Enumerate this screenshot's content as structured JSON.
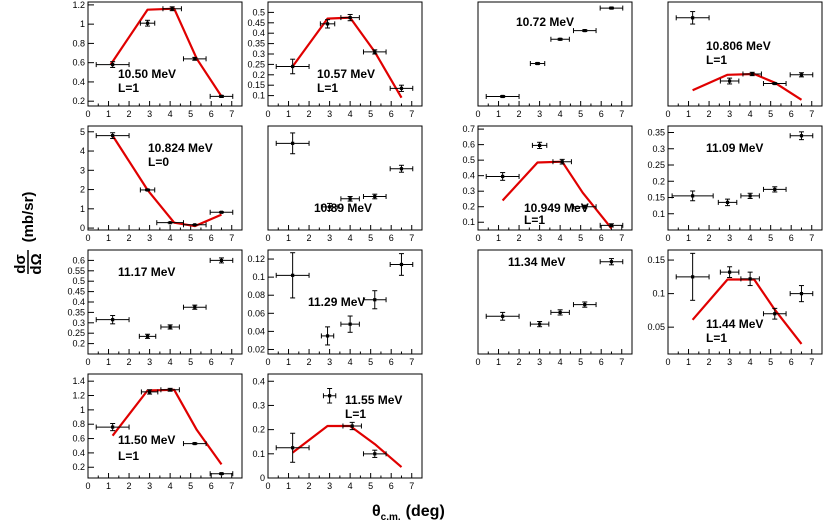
{
  "figure": {
    "xlabel_main": "θ",
    "xlabel_sub": "c.m.",
    "xlabel_unit": "(deg)",
    "ylabel_num": "dσ",
    "ylabel_den": "dΩ",
    "ylabel_unit": "(mb/sr)"
  },
  "chart_data": [
    {
      "type": "scatter",
      "energy": "10.50 MeV",
      "L": "L=1",
      "xlim": [
        0,
        7.5
      ],
      "ylim": [
        0.15,
        1.23
      ],
      "yticks": [
        0.2,
        0.4,
        0.6,
        0.8,
        1,
        1.2
      ],
      "points": [
        {
          "x": 1.2,
          "y": 0.58,
          "xerr": 0.8,
          "yerr": 0.03
        },
        {
          "x": 2.9,
          "y": 1.01,
          "xerr": 0.35,
          "yerr": 0.03
        },
        {
          "x": 4.1,
          "y": 1.16,
          "xerr": 0.45,
          "yerr": 0.02
        },
        {
          "x": 5.2,
          "y": 0.64,
          "xerr": 0.55,
          "yerr": 0.015
        },
        {
          "x": 6.5,
          "y": 0.25,
          "xerr": 0.55,
          "yerr": 0.01
        }
      ],
      "fit": [
        [
          1.1,
          0.58
        ],
        [
          2.9,
          1.15
        ],
        [
          4.2,
          1.16
        ],
        [
          5.3,
          0.64
        ],
        [
          6.5,
          0.25
        ]
      ]
    },
    {
      "type": "scatter",
      "energy": "10.57 MeV",
      "L": "L=1",
      "xlim": [
        0,
        7.5
      ],
      "ylim": [
        0.05,
        0.55
      ],
      "yticks": [
        0.1,
        0.15,
        0.2,
        0.25,
        0.3,
        0.35,
        0.4,
        0.45,
        0.5
      ],
      "points": [
        {
          "x": 1.2,
          "y": 0.24,
          "xerr": 0.8,
          "yerr": 0.035
        },
        {
          "x": 2.9,
          "y": 0.445,
          "xerr": 0.35,
          "yerr": 0.02
        },
        {
          "x": 4.0,
          "y": 0.475,
          "xerr": 0.45,
          "yerr": 0.015
        },
        {
          "x": 5.2,
          "y": 0.31,
          "xerr": 0.55,
          "yerr": 0.01
        },
        {
          "x": 6.5,
          "y": 0.135,
          "xerr": 0.55,
          "yerr": 0.015
        }
      ],
      "fit": [
        [
          1.2,
          0.24
        ],
        [
          2.9,
          0.47
        ],
        [
          4.0,
          0.475
        ],
        [
          5.2,
          0.31
        ],
        [
          6.5,
          0.09
        ]
      ]
    },
    {
      "type": "scatter",
      "energy": "10.72 MeV",
      "L": "",
      "xlim": [
        0,
        7.5
      ],
      "ylim": [
        0.2,
        1.4
      ],
      "yticks": [],
      "points": [
        {
          "x": 1.2,
          "y": 0.31,
          "xerr": 0.8,
          "yerr": 0.01
        },
        {
          "x": 2.9,
          "y": 0.69,
          "xerr": 0.35,
          "yerr": 0.01
        },
        {
          "x": 4.0,
          "y": 0.97,
          "xerr": 0.45,
          "yerr": 0.01
        },
        {
          "x": 5.2,
          "y": 1.07,
          "xerr": 0.55,
          "yerr": 0.01
        },
        {
          "x": 6.5,
          "y": 1.33,
          "xerr": 0.55,
          "yerr": 0.01
        }
      ],
      "fit": []
    },
    {
      "type": "scatter",
      "energy": "10.806 MeV",
      "L": "L=1",
      "xlim": [
        0,
        7.5
      ],
      "ylim": [
        0.0,
        2.5
      ],
      "yticks": [],
      "points": [
        {
          "x": 1.2,
          "y": 2.12,
          "xerr": 0.8,
          "yerr": 0.15
        },
        {
          "x": 3.0,
          "y": 0.6,
          "xerr": 0.45,
          "yerr": 0.07
        },
        {
          "x": 4.1,
          "y": 0.77,
          "xerr": 0.45,
          "yerr": 0.04
        },
        {
          "x": 5.2,
          "y": 0.54,
          "xerr": 0.55,
          "yerr": 0.02
        },
        {
          "x": 6.5,
          "y": 0.75,
          "xerr": 0.55,
          "yerr": 0.05
        }
      ],
      "fit": [
        [
          1.2,
          0.38
        ],
        [
          2.9,
          0.75
        ],
        [
          4.2,
          0.77
        ],
        [
          5.2,
          0.56
        ],
        [
          6.5,
          0.15
        ]
      ]
    },
    {
      "type": "scatter",
      "energy": "10.824 MeV",
      "L": "L=0",
      "xlim": [
        0,
        7.5
      ],
      "ylim": [
        -0.1,
        5.3
      ],
      "yticks": [
        0,
        1,
        2,
        3,
        4,
        5
      ],
      "points": [
        {
          "x": 1.2,
          "y": 4.8,
          "xerr": 0.8,
          "yerr": 0.15
        },
        {
          "x": 2.9,
          "y": 1.98,
          "xerr": 0.35,
          "yerr": 0.04
        },
        {
          "x": 4.0,
          "y": 0.28,
          "xerr": 0.65,
          "yerr": 0.02
        },
        {
          "x": 5.2,
          "y": 0.17,
          "xerr": 0.55,
          "yerr": 0.02
        },
        {
          "x": 6.5,
          "y": 0.82,
          "xerr": 0.55,
          "yerr": 0.03
        }
      ],
      "fit": [
        [
          1.2,
          4.8
        ],
        [
          2.9,
          1.98
        ],
        [
          4.2,
          0.28
        ],
        [
          5.2,
          0.1
        ],
        [
          6.5,
          0.7
        ]
      ]
    },
    {
      "type": "scatter",
      "energy": "10.89 MeV",
      "L": "",
      "xlim": [
        0,
        7.5
      ],
      "ylim": [
        0.15,
        0.6
      ],
      "yticks": [],
      "points": [
        {
          "x": 1.2,
          "y": 0.525,
          "xerr": 0.8,
          "yerr": 0.045
        },
        {
          "x": 3.0,
          "y": 0.25,
          "xerr": 0.4,
          "yerr": 0.015
        },
        {
          "x": 4.0,
          "y": 0.285,
          "xerr": 0.45,
          "yerr": 0.01
        },
        {
          "x": 5.2,
          "y": 0.295,
          "xerr": 0.55,
          "yerr": 0.01
        },
        {
          "x": 6.5,
          "y": 0.415,
          "xerr": 0.55,
          "yerr": 0.015
        }
      ],
      "fit": []
    },
    {
      "type": "scatter",
      "energy": "10.949 MeV",
      "L": "L=1",
      "xlim": [
        0,
        7.5
      ],
      "ylim": [
        0.05,
        0.72
      ],
      "yticks": [
        0.1,
        0.2,
        0.3,
        0.4,
        0.5,
        0.6,
        0.7
      ],
      "points": [
        {
          "x": 1.2,
          "y": 0.395,
          "xerr": 0.8,
          "yerr": 0.025
        },
        {
          "x": 3.0,
          "y": 0.595,
          "xerr": 0.35,
          "yerr": 0.02
        },
        {
          "x": 4.1,
          "y": 0.49,
          "xerr": 0.45,
          "yerr": 0.015
        },
        {
          "x": 5.2,
          "y": 0.2,
          "xerr": 0.55,
          "yerr": 0.01
        },
        {
          "x": 6.5,
          "y": 0.08,
          "xerr": 0.55,
          "yerr": 0.01
        }
      ],
      "fit": [
        [
          1.2,
          0.24
        ],
        [
          2.9,
          0.485
        ],
        [
          4.1,
          0.49
        ],
        [
          5.1,
          0.29
        ],
        [
          6.5,
          0.06
        ]
      ]
    },
    {
      "type": "scatter",
      "energy": "11.09 MeV",
      "L": "",
      "xlim": [
        0,
        7.5
      ],
      "ylim": [
        0.05,
        0.37
      ],
      "yticks": [
        0.1,
        0.15,
        0.2,
        0.25,
        0.3,
        0.35
      ],
      "points": [
        {
          "x": 1.2,
          "y": 0.155,
          "xerr": 1.0,
          "yerr": 0.015
        },
        {
          "x": 2.9,
          "y": 0.135,
          "xerr": 0.45,
          "yerr": 0.01
        },
        {
          "x": 4.0,
          "y": 0.155,
          "xerr": 0.45,
          "yerr": 0.008
        },
        {
          "x": 5.2,
          "y": 0.175,
          "xerr": 0.55,
          "yerr": 0.008
        },
        {
          "x": 6.5,
          "y": 0.34,
          "xerr": 0.55,
          "yerr": 0.012
        }
      ],
      "fit": []
    },
    {
      "type": "scatter",
      "energy": "11.17 MeV",
      "L": "",
      "xlim": [
        0,
        7.5
      ],
      "ylim": [
        0.15,
        0.65
      ],
      "yticks": [
        0.2,
        0.25,
        0.3,
        0.35,
        0.4,
        0.45,
        0.5,
        0.55,
        0.6
      ],
      "points": [
        {
          "x": 1.2,
          "y": 0.315,
          "xerr": 0.8,
          "yerr": 0.02
        },
        {
          "x": 2.9,
          "y": 0.235,
          "xerr": 0.4,
          "yerr": 0.01
        },
        {
          "x": 4.0,
          "y": 0.28,
          "xerr": 0.45,
          "yerr": 0.01
        },
        {
          "x": 5.2,
          "y": 0.375,
          "xerr": 0.55,
          "yerr": 0.01
        },
        {
          "x": 6.5,
          "y": 0.6,
          "xerr": 0.55,
          "yerr": 0.012
        }
      ],
      "fit": []
    },
    {
      "type": "scatter",
      "energy": "11.29 MeV",
      "L": "",
      "xlim": [
        0,
        7.5
      ],
      "ylim": [
        0.015,
        0.13
      ],
      "yticks": [
        0.02,
        0.04,
        0.06,
        0.08,
        0.1,
        0.12
      ],
      "points": [
        {
          "x": 1.2,
          "y": 0.102,
          "xerr": 0.8,
          "yerr": 0.025
        },
        {
          "x": 2.9,
          "y": 0.035,
          "xerr": 0.3,
          "yerr": 0.01
        },
        {
          "x": 4.0,
          "y": 0.048,
          "xerr": 0.45,
          "yerr": 0.009
        },
        {
          "x": 5.2,
          "y": 0.075,
          "xerr": 0.55,
          "yerr": 0.01
        },
        {
          "x": 6.5,
          "y": 0.114,
          "xerr": 0.55,
          "yerr": 0.012
        }
      ],
      "fit": []
    },
    {
      "type": "scatter",
      "energy": "11.34 MeV",
      "L": "",
      "xlim": [
        0,
        7.5
      ],
      "ylim": [
        0.15,
        0.55
      ],
      "yticks": [],
      "points": [
        {
          "x": 1.2,
          "y": 0.295,
          "xerr": 0.8,
          "yerr": 0.015
        },
        {
          "x": 3.0,
          "y": 0.265,
          "xerr": 0.45,
          "yerr": 0.01
        },
        {
          "x": 4.0,
          "y": 0.31,
          "xerr": 0.45,
          "yerr": 0.01
        },
        {
          "x": 5.2,
          "y": 0.34,
          "xerr": 0.55,
          "yerr": 0.01
        },
        {
          "x": 6.5,
          "y": 0.505,
          "xerr": 0.55,
          "yerr": 0.012
        }
      ],
      "fit": []
    },
    {
      "type": "scatter",
      "energy": "11.44 MeV",
      "L": "L=1",
      "xlim": [
        0,
        7.5
      ],
      "ylim": [
        0.01,
        0.165
      ],
      "yticks": [
        0.05,
        0.1,
        0.15
      ],
      "points": [
        {
          "x": 1.2,
          "y": 0.125,
          "xerr": 0.8,
          "yerr": 0.035
        },
        {
          "x": 3.0,
          "y": 0.132,
          "xerr": 0.45,
          "yerr": 0.008
        },
        {
          "x": 4.0,
          "y": 0.122,
          "xerr": 0.45,
          "yerr": 0.01
        },
        {
          "x": 5.2,
          "y": 0.07,
          "xerr": 0.55,
          "yerr": 0.008
        },
        {
          "x": 6.5,
          "y": 0.1,
          "xerr": 0.55,
          "yerr": 0.012
        }
      ],
      "fit": [
        [
          1.2,
          0.061
        ],
        [
          2.9,
          0.121
        ],
        [
          4.2,
          0.121
        ],
        [
          5.2,
          0.076
        ],
        [
          6.5,
          0.025
        ]
      ]
    },
    {
      "type": "scatter",
      "energy": "11.50 MeV",
      "L": "L=1",
      "xlim": [
        0,
        7.5
      ],
      "ylim": [
        0.05,
        1.5
      ],
      "yticks": [
        0.2,
        0.4,
        0.6,
        0.8,
        1,
        1.2,
        1.4
      ],
      "points": [
        {
          "x": 1.2,
          "y": 0.76,
          "xerr": 0.8,
          "yerr": 0.05
        },
        {
          "x": 3.0,
          "y": 1.25,
          "xerr": 0.4,
          "yerr": 0.03
        },
        {
          "x": 4.0,
          "y": 1.28,
          "xerr": 0.45,
          "yerr": 0.02
        },
        {
          "x": 5.2,
          "y": 0.53,
          "xerr": 0.55,
          "yerr": 0.01
        },
        {
          "x": 6.5,
          "y": 0.11,
          "xerr": 0.55,
          "yerr": 0.01
        }
      ],
      "fit": [
        [
          1.2,
          0.64
        ],
        [
          2.9,
          1.27
        ],
        [
          4.2,
          1.28
        ],
        [
          5.3,
          0.72
        ],
        [
          6.5,
          0.24
        ]
      ]
    },
    {
      "type": "scatter",
      "energy": "11.55 MeV",
      "L": "L=1",
      "xlim": [
        0,
        7.5
      ],
      "ylim": [
        0.0,
        0.43
      ],
      "yticks": [
        0,
        0.1,
        0.2,
        0.3,
        0.4
      ],
      "points": [
        {
          "x": 1.2,
          "y": 0.125,
          "xerr": 0.8,
          "yerr": 0.06
        },
        {
          "x": 3.0,
          "y": 0.34,
          "xerr": 0.3,
          "yerr": 0.03
        },
        {
          "x": 4.1,
          "y": 0.215,
          "xerr": 0.45,
          "yerr": 0.015
        },
        {
          "x": 5.2,
          "y": 0.1,
          "xerr": 0.55,
          "yerr": 0.015
        }
      ],
      "fit": [
        [
          1.2,
          0.105
        ],
        [
          2.9,
          0.215
        ],
        [
          4.0,
          0.215
        ],
        [
          5.2,
          0.14
        ],
        [
          6.5,
          0.045
        ]
      ]
    }
  ],
  "xticks": [
    0,
    1,
    2,
    3,
    4,
    5,
    6,
    7
  ],
  "colors": {
    "fit": "#e00000",
    "data": "#000000",
    "frame": "#000000"
  }
}
